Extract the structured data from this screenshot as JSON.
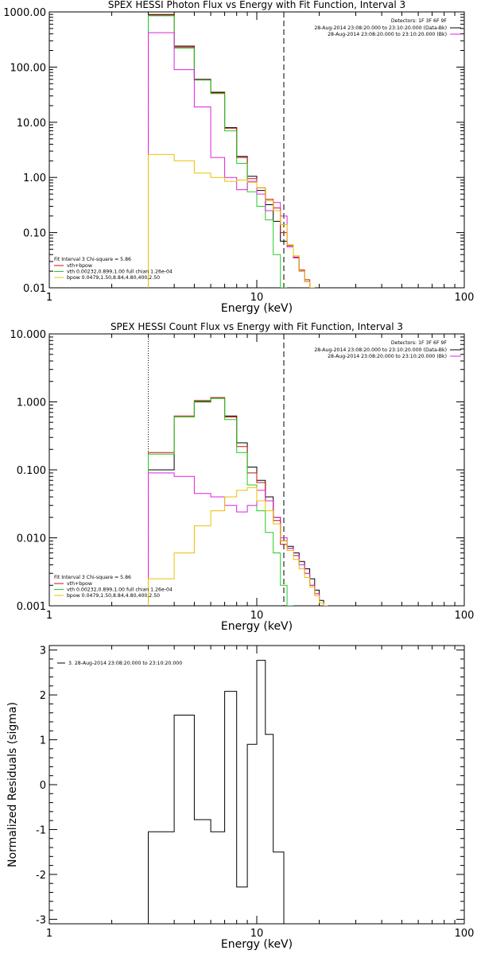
{
  "colors": {
    "data": "#000000",
    "bk": "#9a9a9a",
    "total": "#cc1111",
    "vth": "#22cc22",
    "bpow": "#e8c000",
    "magenta": "#dd22dd"
  },
  "chart_data": [
    {
      "type": "line",
      "title": "SPEX HESSI Photon Flux vs Energy with Fit Function, Interval 3",
      "xlabel": "Energy (keV)",
      "ylabel": "",
      "xscale": "log",
      "yscale": "log",
      "xlim": [
        1,
        100
      ],
      "ylim": [
        0.01,
        1000
      ],
      "xticks": [
        {
          "v": 1,
          "label": "1"
        },
        {
          "v": 10,
          "label": "10"
        },
        {
          "v": 100,
          "label": "100"
        }
      ],
      "yticks": [
        {
          "v": 1000,
          "label": "1000.00"
        },
        {
          "v": 100,
          "label": "100.00"
        },
        {
          "v": 10,
          "label": "10.00"
        },
        {
          "v": 1,
          "label": "1.00"
        },
        {
          "v": 0.1,
          "label": "0.10"
        },
        {
          "v": 0.01,
          "label": "0.01"
        }
      ],
      "vlines": [
        {
          "x": 3.0,
          "style": "dotted"
        },
        {
          "x": 13.5,
          "style": "dashed"
        }
      ],
      "legend_topright": {
        "title": "Detectors: 1F 3F 6F 9F",
        "entries": [
          {
            "text": "28-Aug-2014 23:08:20.000 to 23:10:20.000 (Data-Bk)",
            "color": "data"
          },
          {
            "text": "28-Aug-2014 23:08:20.000 to 23:10:20.000 (Bk)",
            "color": "magenta"
          }
        ]
      },
      "legend_bottomleft": {
        "title": "Fit Interval 3   Chi-square = 5.86",
        "entries": [
          {
            "text": "vth+bpow",
            "color": "total"
          },
          {
            "text": "vth 0.00232,0.899,1.00  full chian 1.26e-04",
            "color": "vth"
          },
          {
            "text": "bpow 0.0479,1.50,8.84,4.80,400,2.50",
            "color": "bpow"
          }
        ]
      },
      "edges": [
        3.0,
        3.5,
        4.0,
        4.5,
        5.0,
        5.5,
        6.0,
        6.5,
        7.0,
        7.5,
        8.0,
        8.5,
        9.0,
        9.5,
        10.0,
        10.5,
        11.0,
        11.5,
        12.0,
        12.5,
        13.0,
        13.5,
        14.0,
        15.0,
        16.0,
        17.0,
        18.0,
        19.0,
        20.0,
        21.0
      ],
      "series": [
        {
          "key": "data",
          "color": "data",
          "values": [
            900,
            900,
            240,
            240,
            60,
            60,
            35,
            35,
            8.0,
            8.0,
            2.4,
            2.4,
            1.05,
            1.05,
            0.58,
            0.58,
            0.32,
            0.32,
            0.16,
            0.16,
            0.07,
            0.07,
            0.06,
            0.035,
            0.02,
            0.013,
            0.01,
            null,
            null
          ]
        },
        {
          "key": "total",
          "color": "total",
          "values": [
            880,
            880,
            230,
            230,
            59,
            59,
            34,
            34,
            7.8,
            7.8,
            2.3,
            2.3,
            0.95,
            0.95,
            0.65,
            0.65,
            0.4,
            0.4,
            0.28,
            0.28,
            0.1,
            0.1,
            0.058,
            0.036,
            0.021,
            0.014,
            0.01,
            null,
            null
          ]
        },
        {
          "key": "vth",
          "color": "vth",
          "values": [
            850,
            850,
            220,
            220,
            58,
            58,
            33,
            33,
            7.0,
            7.0,
            1.8,
            1.8,
            0.55,
            0.55,
            0.3,
            0.3,
            0.17,
            0.17,
            0.04,
            0.04,
            0.01,
            0.01,
            null,
            null,
            null,
            null,
            null,
            null,
            null
          ]
        },
        {
          "key": "magenta",
          "color": "magenta",
          "values": [
            420,
            420,
            90,
            90,
            19,
            19,
            2.3,
            2.3,
            1.0,
            1.0,
            0.6,
            0.6,
            0.85,
            0.85,
            0.5,
            0.5,
            0.25,
            0.25,
            0.35,
            0.35,
            0.2,
            0.2,
            0.055,
            0.035,
            0.02,
            0.013,
            0.01,
            null,
            null
          ]
        },
        {
          "key": "bpow",
          "color": "bpow",
          "values": [
            2.6,
            2.6,
            2.0,
            2.0,
            1.2,
            1.2,
            1.0,
            1.0,
            0.85,
            0.85,
            0.9,
            0.9,
            0.82,
            0.82,
            0.65,
            0.65,
            0.38,
            0.38,
            0.25,
            0.25,
            0.14,
            0.14,
            0.06,
            0.038,
            0.02,
            0.013,
            0.01,
            null,
            null
          ]
        }
      ]
    },
    {
      "type": "line",
      "title": "SPEX HESSI Count Flux vs Energy with Fit Function, Interval 3",
      "xlabel": "Energy (keV)",
      "ylabel": "",
      "xscale": "log",
      "yscale": "log",
      "xlim": [
        1,
        100
      ],
      "ylim": [
        0.001,
        10
      ],
      "xticks": [
        {
          "v": 1,
          "label": "1"
        },
        {
          "v": 10,
          "label": "10"
        },
        {
          "v": 100,
          "label": "100"
        }
      ],
      "yticks": [
        {
          "v": 10,
          "label": "10.000"
        },
        {
          "v": 1,
          "label": "1.000"
        },
        {
          "v": 0.1,
          "label": "0.100"
        },
        {
          "v": 0.01,
          "label": "0.010"
        },
        {
          "v": 0.001,
          "label": "0.001"
        }
      ],
      "vlines": [
        {
          "x": 3.0,
          "style": "dotted"
        },
        {
          "x": 13.5,
          "style": "dashed"
        }
      ],
      "legend_topright": {
        "title": "Detectors: 1F 3F 6F 9F",
        "entries": [
          {
            "text": "28-Aug-2014 23:08:20.000 to 23:10:20.000 (Data-Bk)",
            "color": "data"
          },
          {
            "text": "28-Aug-2014 23:08:20.000 to 23:10:20.000 (Bk)",
            "color": "magenta"
          }
        ]
      },
      "legend_bottomleft": {
        "title": "Fit Interval 3   Chi-square = 5.86",
        "entries": [
          {
            "text": "vth+bpow",
            "color": "total"
          },
          {
            "text": "vth 0.00232,0.899,1.00  full chian 1.26e-04",
            "color": "vth"
          },
          {
            "text": "bpow 0.0479,1.50,8.84,4.80,400,2.50",
            "color": "bpow"
          }
        ]
      },
      "edges": [
        3.0,
        3.5,
        4.0,
        4.5,
        5.0,
        5.5,
        6.0,
        6.5,
        7.0,
        7.5,
        8.0,
        8.5,
        9.0,
        9.5,
        10.0,
        10.5,
        11.0,
        11.5,
        12.0,
        12.5,
        13.0,
        13.5,
        14.0,
        15.0,
        16.0,
        17.0,
        18.0,
        19.0,
        20.0,
        21.0,
        22.0
      ],
      "series": [
        {
          "key": "data",
          "color": "data",
          "values": [
            0.1,
            0.1,
            0.6,
            0.6,
            1.0,
            1.0,
            1.15,
            1.15,
            0.62,
            0.62,
            0.25,
            0.25,
            0.11,
            0.11,
            0.07,
            0.07,
            0.04,
            0.04,
            0.02,
            0.02,
            0.009,
            0.009,
            0.0075,
            0.006,
            0.0045,
            0.0035,
            0.0025,
            0.0017,
            0.0012,
            0.001
          ]
        },
        {
          "key": "total",
          "color": "total",
          "values": [
            0.18,
            0.18,
            0.62,
            0.62,
            1.05,
            1.05,
            1.15,
            1.15,
            0.6,
            0.6,
            0.22,
            0.22,
            0.09,
            0.09,
            0.065,
            0.065,
            0.035,
            0.035,
            0.018,
            0.018,
            0.008,
            0.008,
            0.007,
            0.0055,
            0.004,
            0.003,
            0.002,
            0.0015,
            0.0011,
            0.001
          ]
        },
        {
          "key": "vth",
          "color": "vth",
          "values": [
            0.17,
            0.17,
            0.6,
            0.6,
            1.02,
            1.02,
            1.12,
            1.12,
            0.55,
            0.55,
            0.18,
            0.18,
            0.06,
            0.06,
            0.025,
            0.025,
            0.012,
            0.012,
            0.006,
            0.006,
            0.002,
            0.002,
            0.001,
            null,
            null,
            null,
            null,
            null,
            null,
            null
          ]
        },
        {
          "key": "magenta",
          "color": "magenta",
          "values": [
            0.09,
            0.09,
            0.08,
            0.08,
            0.045,
            0.045,
            0.04,
            0.04,
            0.03,
            0.03,
            0.024,
            0.024,
            0.03,
            0.03,
            0.05,
            0.05,
            0.035,
            0.035,
            0.02,
            0.02,
            0.01,
            0.01,
            0.007,
            0.0055,
            0.004,
            0.003,
            0.002,
            0.0015,
            0.0011,
            0.001
          ]
        },
        {
          "key": "bpow",
          "color": "bpow",
          "values": [
            0.0025,
            0.0025,
            0.006,
            0.006,
            0.015,
            0.015,
            0.025,
            0.025,
            0.04,
            0.04,
            0.05,
            0.05,
            0.055,
            0.055,
            0.035,
            0.035,
            0.025,
            0.025,
            0.016,
            0.016,
            0.009,
            0.009,
            0.0065,
            0.0048,
            0.0035,
            0.0026,
            0.0019,
            0.0014,
            0.0011,
            0.001
          ]
        }
      ]
    },
    {
      "type": "line",
      "title": "",
      "xlabel": "Energy (keV)",
      "ylabel": "Normalized Residuals (sigma)",
      "xscale": "log",
      "yscale": "linear",
      "xlim": [
        1,
        100
      ],
      "ylim": [
        -3.1,
        3.1
      ],
      "xticks": [
        {
          "v": 1,
          "label": "1"
        },
        {
          "v": 10,
          "label": "10"
        },
        {
          "v": 100,
          "label": "100"
        }
      ],
      "yticks": [
        {
          "v": 3,
          "label": "3"
        },
        {
          "v": 2,
          "label": "2"
        },
        {
          "v": 1,
          "label": "1"
        },
        {
          "v": 0,
          "label": "0"
        },
        {
          "v": -1,
          "label": "-1"
        },
        {
          "v": -2,
          "label": "-2"
        },
        {
          "v": -3,
          "label": "-3"
        }
      ],
      "vlines": [],
      "legend_topleft": {
        "entries": [
          {
            "text": "3. 28-Aug-2014 23:08:20.000 to 23:10:20.000",
            "color": "data"
          }
        ]
      },
      "edges": [
        3.0,
        4.0,
        5.0,
        6.0,
        7.0,
        8.0,
        9.0,
        10.0,
        11.0,
        12.0,
        13.5
      ],
      "series": [
        {
          "key": "residuals",
          "color": "data",
          "values": [
            -1.05,
            1.55,
            -0.78,
            -1.05,
            2.08,
            -2.28,
            0.9,
            2.77,
            1.12,
            -1.5
          ]
        }
      ],
      "baseline": -3.1
    }
  ]
}
